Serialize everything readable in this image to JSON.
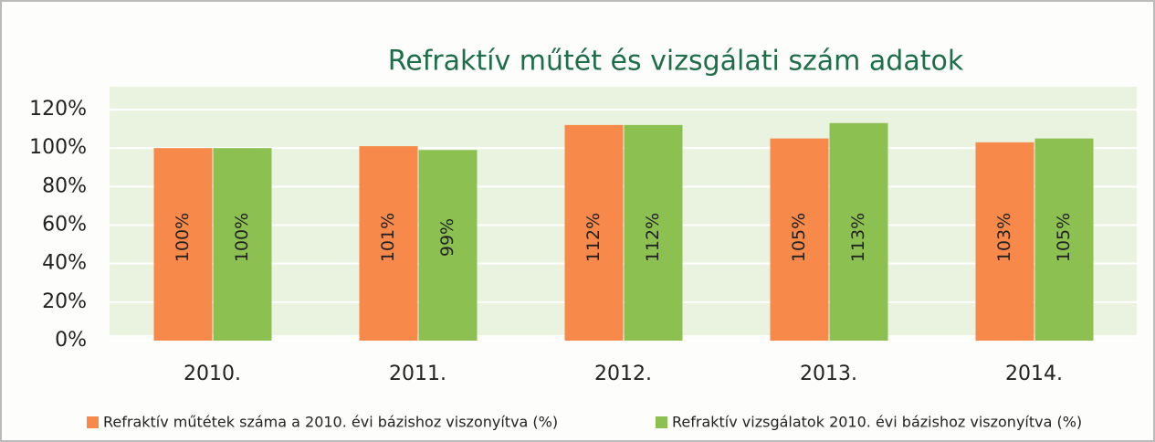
{
  "chart_data": {
    "type": "bar",
    "title": "Refraktív műtét és vizsgálati szám adatok",
    "categories": [
      "2010.",
      "2011.",
      "2012.",
      "2013.",
      "2014."
    ],
    "series": [
      {
        "name": "Refraktív műtétek száma a 2010. évi bázishoz viszonyítva (%)",
        "color": "#f7894a",
        "values": [
          100,
          101,
          112,
          105,
          103
        ],
        "value_labels": [
          "100%",
          "101%",
          "112%",
          "105%",
          "103%"
        ]
      },
      {
        "name": "Refraktív vizsgálatok 2010. évi bázishoz viszonyítva (%)",
        "color": "#8cc152",
        "values": [
          100,
          99,
          112,
          113,
          105
        ],
        "value_labels": [
          "100%",
          "99%",
          "112%",
          "113%",
          "105%"
        ]
      }
    ],
    "ylim": [
      0,
      120
    ],
    "yticks": [
      {
        "value": 0,
        "label": "0%"
      },
      {
        "value": 20,
        "label": "20%"
      },
      {
        "value": 40,
        "label": "40%"
      },
      {
        "value": 60,
        "label": "60%"
      },
      {
        "value": 80,
        "label": "80%"
      },
      {
        "value": 100,
        "label": "100%"
      },
      {
        "value": 120,
        "label": "120%"
      }
    ],
    "grid": true,
    "legend": "bottom"
  }
}
